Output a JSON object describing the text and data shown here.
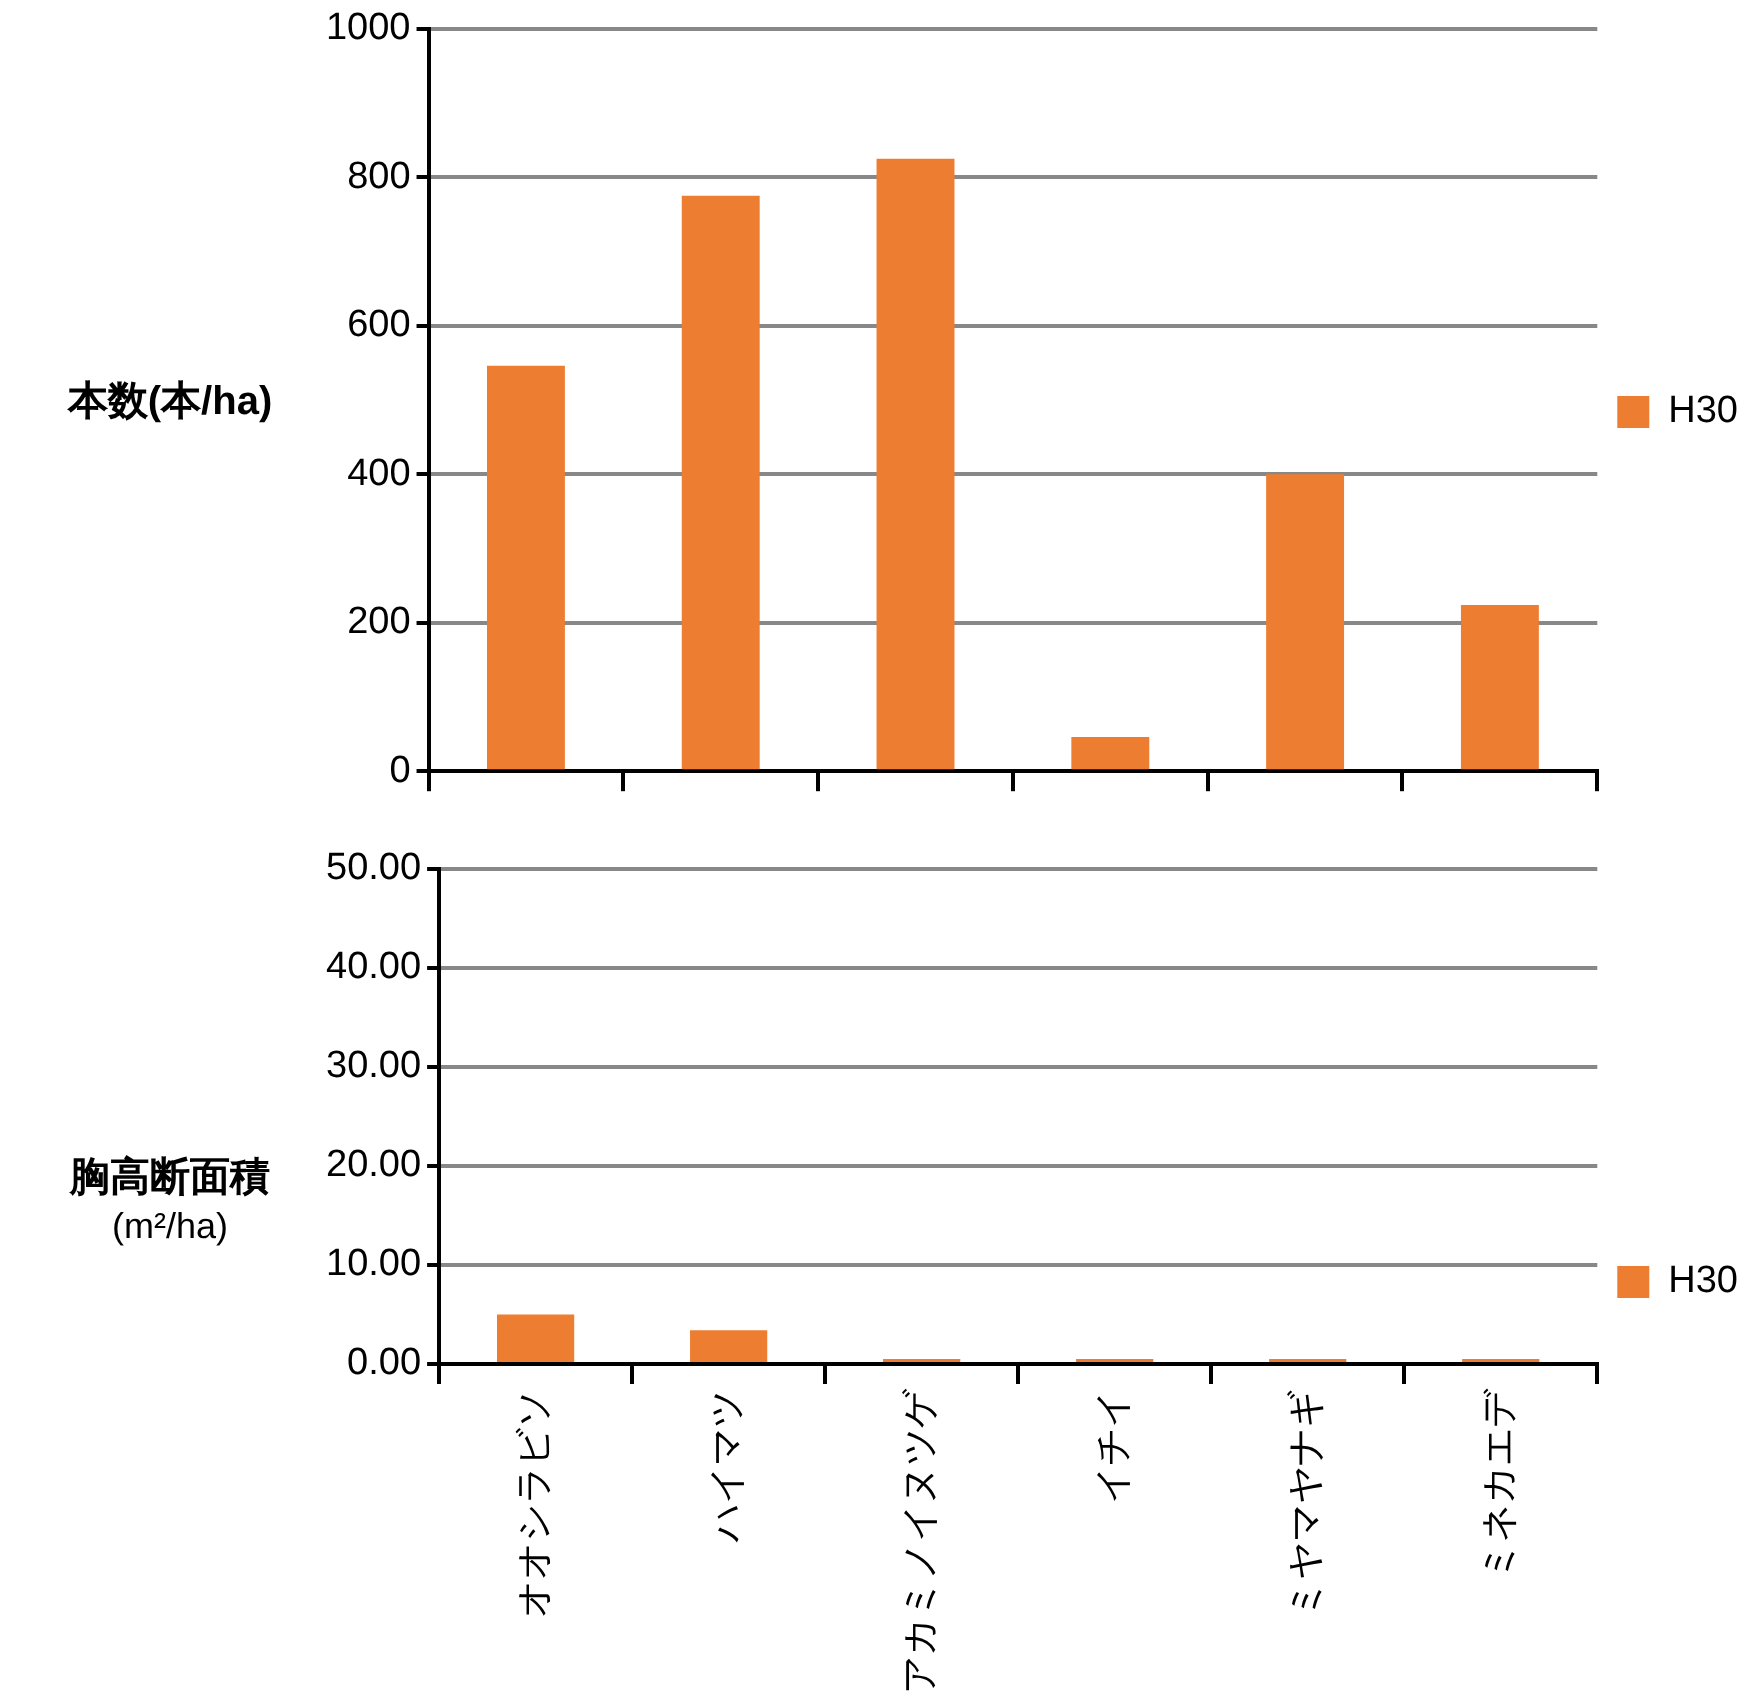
{
  "chart_data": [
    {
      "type": "bar",
      "ylabel": "本数(本/ha)",
      "categories": [
        null,
        null,
        null,
        null,
        null,
        null
      ],
      "series": [
        {
          "name": "H30",
          "color": "#ed7d31",
          "values": [
            546,
            775,
            825,
            46,
            400,
            224
          ]
        }
      ],
      "ylim": [
        0,
        1000
      ],
      "yticks": [
        0,
        200,
        400,
        600,
        800,
        1000
      ],
      "grid": "y",
      "legend": "right",
      "tick_labels": "y"
    },
    {
      "type": "bar",
      "ylabel": "胸高断面積 (m²/ha)",
      "categories": [
        "オオシラビソ",
        "ハイマツ",
        "アカミノイヌツゲ",
        "イチイ",
        "ミヤマヤナギ",
        "ミネカエデ"
      ],
      "series": [
        {
          "name": "H30",
          "color": "#ed7d31",
          "values": [
            5.0,
            3.4,
            0.5,
            0.5,
            0.5,
            0.5
          ]
        }
      ],
      "ylim": [
        0,
        50
      ],
      "yticks": [
        {
          "value": 0,
          "label": "0.00"
        },
        {
          "value": 10,
          "label": "10.00"
        },
        {
          "value": 20,
          "label": "20.00"
        },
        {
          "value": 30,
          "label": "30.00"
        },
        {
          "value": 40,
          "label": "40.00"
        },
        {
          "value": 50,
          "label": "50.00"
        }
      ],
      "grid": "y",
      "legend": "right"
    }
  ]
}
